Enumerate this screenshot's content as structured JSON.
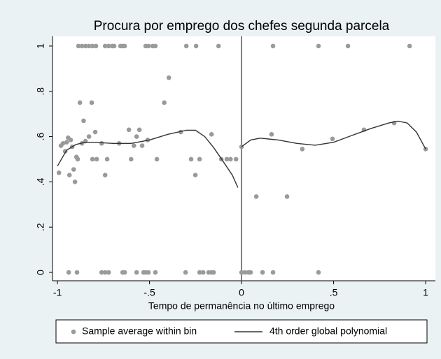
{
  "chart_data": {
    "type": "scatter",
    "title": "Procura por emprego dos chefes segunda parcela",
    "x_label": "Tempo de permanência no último emprego",
    "xlim": [
      -1.027,
      1.053
    ],
    "ylim": [
      -0.037,
      1.043
    ],
    "xticks": [
      -1,
      {
        "value": -0.5,
        "label": "-.5"
      },
      0,
      {
        "value": 0.5,
        "label": ".5"
      },
      1
    ],
    "yticks": [
      0,
      {
        "value": 0.2,
        "label": ".2"
      },
      {
        "value": 0.4,
        "label": ".4"
      },
      {
        "value": 0.6,
        "label": ".6"
      },
      {
        "value": 0.8,
        "label": ".8"
      },
      1
    ],
    "cutoff": 0,
    "series": [
      {
        "name": "Sample average within bin",
        "kind": "points",
        "color": "#9a9a9a",
        "x": [
          -0.886,
          -0.867,
          -0.848,
          -0.829,
          -0.81,
          -0.791,
          -0.741,
          -0.722,
          -0.703,
          -0.692,
          -0.658,
          -0.646,
          -0.635,
          -0.521,
          -0.506,
          -0.483,
          -0.468,
          -0.3,
          -0.247,
          -0.125,
          0.171,
          0.418,
          0.578,
          0.913,
          -0.939,
          -0.894,
          -0.76,
          -0.741,
          -0.722,
          -0.646,
          -0.635,
          -0.57,
          -0.532,
          -0.521,
          -0.506,
          -0.468,
          -0.304,
          -0.228,
          -0.209,
          -0.179,
          -0.163,
          -0.152,
          0,
          0.019,
          0.038,
          0.049,
          0.114,
          0.171,
          0.418,
          -0.992,
          -0.981,
          -0.97,
          -0.958,
          -0.95,
          -0.942,
          -0.935,
          -0.928,
          -0.92,
          -0.912,
          -0.905,
          -0.897,
          -0.89,
          -0.878,
          -0.867,
          -0.858,
          -0.848,
          -0.829,
          -0.814,
          -0.81,
          -0.795,
          -0.787,
          -0.76,
          -0.741,
          -0.73,
          -0.665,
          -0.612,
          -0.6,
          -0.585,
          -0.57,
          -0.555,
          -0.54,
          -0.51,
          -0.46,
          -0.42,
          -0.395,
          -0.33,
          -0.274,
          -0.251,
          -0.228,
          -0.163,
          -0.11,
          -0.08,
          -0.06,
          -0.03,
          0,
          0.08,
          0.163,
          0.247,
          0.33,
          0.494,
          0.665,
          0.829,
          1
        ],
        "values": [
          1,
          1,
          1,
          1,
          1,
          1,
          1,
          1,
          1,
          1,
          1,
          1,
          1,
          1,
          1,
          1,
          1,
          1,
          1,
          1,
          1,
          1,
          1,
          1,
          0,
          0,
          0,
          0,
          0,
          0,
          0,
          0,
          0,
          0,
          0,
          0,
          0,
          0,
          0,
          0,
          0,
          0,
          0,
          0,
          0,
          0,
          0,
          0,
          0,
          0.44,
          0.56,
          0.57,
          0.535,
          0.575,
          0.595,
          0.43,
          0.585,
          0.555,
          0.455,
          0.4,
          0.51,
          0.5,
          0.75,
          0.57,
          0.67,
          0.58,
          0.6,
          0.75,
          0.5,
          0.62,
          0.5,
          0.57,
          0.43,
          0.5,
          0.57,
          0.63,
          0.5,
          0.56,
          0.6,
          0.63,
          0.56,
          0.585,
          0.5,
          0.75,
          0.86,
          0.62,
          0.5,
          0.43,
          0.5,
          0.61,
          0.5,
          0.5,
          0.5,
          0.5,
          0.555,
          0.335,
          0.61,
          0.335,
          0.545,
          0.59,
          0.63,
          0.66,
          0.545
        ]
      },
      {
        "name": "4th order global polynomial",
        "kind": "line",
        "color": "#333333",
        "x": [
          -1,
          -0.95,
          -0.9,
          -0.85,
          -0.8,
          -0.7,
          -0.6,
          -0.5,
          -0.4,
          -0.3,
          -0.25,
          -0.2,
          -0.15,
          -0.1,
          -0.05,
          -0.02,
          null,
          0,
          0.05,
          0.1,
          0.2,
          0.3,
          0.4,
          0.5,
          0.6,
          0.7,
          0.8,
          0.85,
          0.9,
          0.95,
          1
        ],
        "values": [
          0.47,
          0.54,
          0.565,
          0.575,
          0.575,
          0.57,
          0.57,
          0.585,
          0.61,
          0.628,
          0.628,
          0.6,
          0.55,
          0.49,
          0.43,
          0.375,
          null,
          0.555,
          0.585,
          0.593,
          0.585,
          0.57,
          0.562,
          0.575,
          0.605,
          0.635,
          0.66,
          0.668,
          0.66,
          0.62,
          0.545
        ]
      }
    ]
  }
}
